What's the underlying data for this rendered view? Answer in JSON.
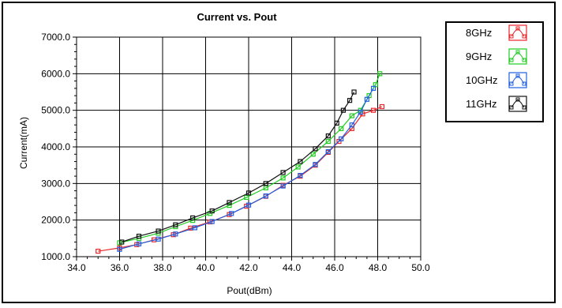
{
  "chart_data": {
    "type": "line",
    "title": "Current vs. Pout",
    "xlabel": "Pout(dBm)",
    "ylabel": "Current(mA)",
    "xlim": [
      34.0,
      50.0
    ],
    "ylim": [
      1000.0,
      7000.0
    ],
    "x_ticks": [
      "34.0",
      "36.0",
      "38.0",
      "40.0",
      "42.0",
      "44.0",
      "46.0",
      "48.0",
      "50.0"
    ],
    "y_ticks": [
      "1000.0",
      "2000.0",
      "3000.0",
      "4000.0",
      "5000.0",
      "6000.0",
      "7000.0"
    ],
    "grid": true,
    "legend_position": "top-right, outside plot",
    "series": [
      {
        "name": "8GHz",
        "color": "#e8262a",
        "x": [
          35.0,
          36.0,
          36.8,
          37.6,
          38.5,
          39.3,
          40.2,
          41.1,
          41.9,
          42.8,
          43.6,
          44.4,
          45.1,
          45.7,
          46.2,
          46.8,
          47.3,
          47.8,
          48.2
        ],
        "y": [
          1150,
          1240,
          1330,
          1460,
          1600,
          1780,
          1950,
          2150,
          2380,
          2650,
          2950,
          3200,
          3500,
          3850,
          4150,
          4500,
          4900,
          5000,
          5100
        ]
      },
      {
        "name": "9GHz",
        "color": "#22cc22",
        "x": [
          36.0,
          36.9,
          37.8,
          38.6,
          39.4,
          40.2,
          41.1,
          41.9,
          42.8,
          43.6,
          44.3,
          45.0,
          45.7,
          46.3,
          46.8,
          47.2,
          47.6,
          47.9,
          48.1
        ],
        "y": [
          1380,
          1500,
          1640,
          1820,
          1990,
          2180,
          2400,
          2620,
          2880,
          3150,
          3450,
          3800,
          4150,
          4500,
          4850,
          5000,
          5400,
          5700,
          6000
        ]
      },
      {
        "name": "10GHz",
        "color": "#2060e0",
        "x": [
          36.0,
          36.9,
          37.8,
          38.6,
          39.5,
          40.3,
          41.2,
          42.0,
          42.8,
          43.6,
          44.4,
          45.1,
          45.7,
          46.3,
          46.8,
          47.2,
          47.5,
          47.8
        ],
        "y": [
          1200,
          1350,
          1480,
          1620,
          1790,
          1960,
          2180,
          2410,
          2660,
          2930,
          3220,
          3520,
          3870,
          4220,
          4600,
          4950,
          5300,
          5600
        ]
      },
      {
        "name": "11GHz",
        "color": "#111111",
        "x": [
          36.1,
          36.9,
          37.8,
          38.6,
          39.4,
          40.3,
          41.1,
          42.0,
          42.8,
          43.6,
          44.4,
          45.1,
          45.7,
          46.1,
          46.4,
          46.7,
          46.9
        ],
        "y": [
          1400,
          1560,
          1700,
          1870,
          2060,
          2250,
          2480,
          2740,
          3000,
          3300,
          3600,
          3950,
          4300,
          4650,
          5000,
          5270,
          5500
        ]
      }
    ]
  }
}
